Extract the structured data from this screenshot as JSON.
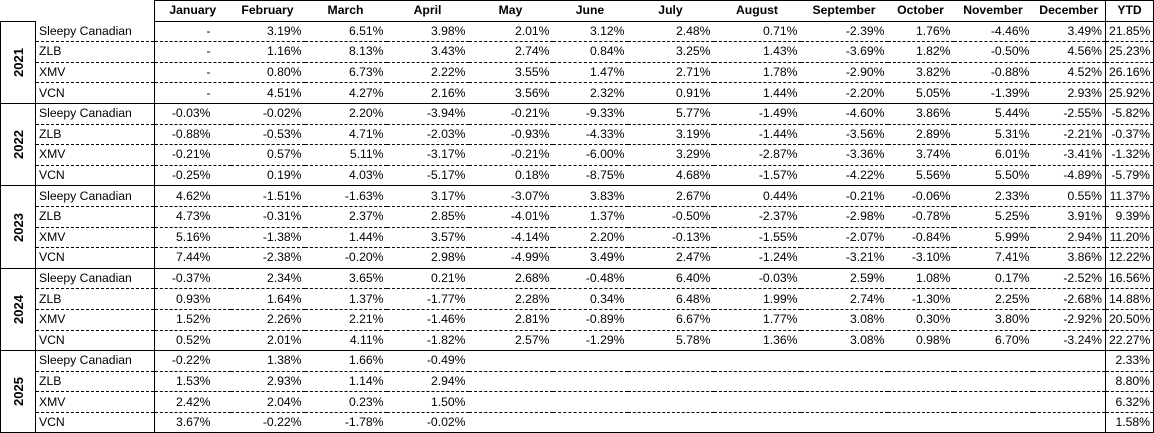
{
  "header": {
    "months": [
      "January",
      "February",
      "March",
      "April",
      "May",
      "June",
      "July",
      "August",
      "September",
      "October",
      "November",
      "December"
    ],
    "ytd_label": "YTD"
  },
  "groups": [
    {
      "year": "2021",
      "rows": [
        {
          "name": "Sleepy Canadian",
          "values": [
            "-",
            "3.19%",
            "6.51%",
            "3.98%",
            "2.01%",
            "3.12%",
            "2.48%",
            "0.71%",
            "-2.39%",
            "1.76%",
            "-4.46%",
            "3.49%"
          ],
          "ytd": "21.85%"
        },
        {
          "name": "ZLB",
          "values": [
            "-",
            "1.16%",
            "8.13%",
            "3.43%",
            "2.74%",
            "0.84%",
            "3.25%",
            "1.43%",
            "-3.69%",
            "1.82%",
            "-0.50%",
            "4.56%"
          ],
          "ytd": "25.23%"
        },
        {
          "name": "XMV",
          "values": [
            "-",
            "0.80%",
            "6.73%",
            "2.22%",
            "3.55%",
            "1.47%",
            "2.71%",
            "1.78%",
            "-2.90%",
            "3.82%",
            "-0.88%",
            "4.52%"
          ],
          "ytd": "26.16%"
        },
        {
          "name": "VCN",
          "values": [
            "-",
            "4.51%",
            "4.27%",
            "2.16%",
            "3.56%",
            "2.32%",
            "0.91%",
            "1.44%",
            "-2.20%",
            "5.05%",
            "-1.39%",
            "2.93%"
          ],
          "ytd": "25.92%"
        }
      ]
    },
    {
      "year": "2022",
      "rows": [
        {
          "name": "Sleepy Canadian",
          "values": [
            "-0.03%",
            "-0.02%",
            "2.20%",
            "-3.94%",
            "-0.21%",
            "-9.33%",
            "5.77%",
            "-1.49%",
            "-4.60%",
            "3.86%",
            "5.44%",
            "-2.55%"
          ],
          "ytd": "-5.82%"
        },
        {
          "name": "ZLB",
          "values": [
            "-0.88%",
            "-0.53%",
            "4.71%",
            "-2.03%",
            "-0.93%",
            "-4.33%",
            "3.19%",
            "-1.44%",
            "-3.56%",
            "2.89%",
            "5.31%",
            "-2.21%"
          ],
          "ytd": "-0.37%"
        },
        {
          "name": "XMV",
          "values": [
            "-0.21%",
            "0.57%",
            "5.11%",
            "-3.17%",
            "-0.21%",
            "-6.00%",
            "3.29%",
            "-2.87%",
            "-3.36%",
            "3.74%",
            "6.01%",
            "-3.41%"
          ],
          "ytd": "-1.32%"
        },
        {
          "name": "VCN",
          "values": [
            "-0.25%",
            "0.19%",
            "4.03%",
            "-5.17%",
            "0.18%",
            "-8.75%",
            "4.68%",
            "-1.57%",
            "-4.22%",
            "5.56%",
            "5.50%",
            "-4.89%"
          ],
          "ytd": "-5.79%"
        }
      ]
    },
    {
      "year": "2023",
      "rows": [
        {
          "name": "Sleepy Canadian",
          "values": [
            "4.62%",
            "-1.51%",
            "-1.63%",
            "3.17%",
            "-3.07%",
            "3.83%",
            "2.67%",
            "0.44%",
            "-0.21%",
            "-0.06%",
            "2.33%",
            "0.55%"
          ],
          "ytd": "11.37%"
        },
        {
          "name": "ZLB",
          "values": [
            "4.73%",
            "-0.31%",
            "2.37%",
            "2.85%",
            "-4.01%",
            "1.37%",
            "-0.50%",
            "-2.37%",
            "-2.98%",
            "-0.78%",
            "5.25%",
            "3.91%"
          ],
          "ytd": "9.39%"
        },
        {
          "name": "XMV",
          "values": [
            "5.16%",
            "-1.38%",
            "1.44%",
            "3.57%",
            "-4.14%",
            "2.20%",
            "-0.13%",
            "-1.55%",
            "-2.07%",
            "-0.84%",
            "5.99%",
            "2.94%"
          ],
          "ytd": "11.20%"
        },
        {
          "name": "VCN",
          "values": [
            "7.44%",
            "-2.38%",
            "-0.20%",
            "2.98%",
            "-4.99%",
            "3.49%",
            "2.47%",
            "-1.24%",
            "-3.21%",
            "-3.10%",
            "7.41%",
            "3.86%"
          ],
          "ytd": "12.22%"
        }
      ]
    },
    {
      "year": "2024",
      "rows": [
        {
          "name": "Sleepy Canadian",
          "values": [
            "-0.37%",
            "2.34%",
            "3.65%",
            "0.21%",
            "2.68%",
            "-0.48%",
            "6.40%",
            "-0.03%",
            "2.59%",
            "1.08%",
            "0.17%",
            "-2.52%"
          ],
          "ytd": "16.56%"
        },
        {
          "name": "ZLB",
          "values": [
            "0.93%",
            "1.64%",
            "1.37%",
            "-1.77%",
            "2.28%",
            "0.34%",
            "6.48%",
            "1.99%",
            "2.74%",
            "-1.30%",
            "2.25%",
            "-2.68%"
          ],
          "ytd": "14.88%"
        },
        {
          "name": "XMV",
          "values": [
            "1.52%",
            "2.26%",
            "2.21%",
            "-1.46%",
            "2.81%",
            "-0.89%",
            "6.67%",
            "1.77%",
            "3.08%",
            "0.30%",
            "3.80%",
            "-2.92%"
          ],
          "ytd": "20.50%"
        },
        {
          "name": "VCN",
          "values": [
            "0.52%",
            "2.01%",
            "4.11%",
            "-1.82%",
            "2.57%",
            "-1.29%",
            "5.78%",
            "1.36%",
            "3.08%",
            "0.98%",
            "6.70%",
            "-3.24%"
          ],
          "ytd": "22.27%"
        }
      ]
    },
    {
      "year": "2025",
      "rows": [
        {
          "name": "Sleepy Canadian",
          "values": [
            "-0.22%",
            "1.38%",
            "1.66%",
            "-0.49%",
            "",
            "",
            "",
            "",
            "",
            "",
            "",
            ""
          ],
          "ytd": "2.33%"
        },
        {
          "name": "ZLB",
          "values": [
            "1.53%",
            "2.93%",
            "1.14%",
            "2.94%",
            "",
            "",
            "",
            "",
            "",
            "",
            "",
            ""
          ],
          "ytd": "8.80%"
        },
        {
          "name": "XMV",
          "values": [
            "2.42%",
            "2.04%",
            "0.23%",
            "1.50%",
            "",
            "",
            "",
            "",
            "",
            "",
            "",
            ""
          ],
          "ytd": "6.32%"
        },
        {
          "name": "VCN",
          "values": [
            "3.67%",
            "-0.22%",
            "-1.78%",
            "-0.02%",
            "",
            "",
            "",
            "",
            "",
            "",
            "",
            ""
          ],
          "ytd": "1.58%"
        }
      ]
    }
  ]
}
